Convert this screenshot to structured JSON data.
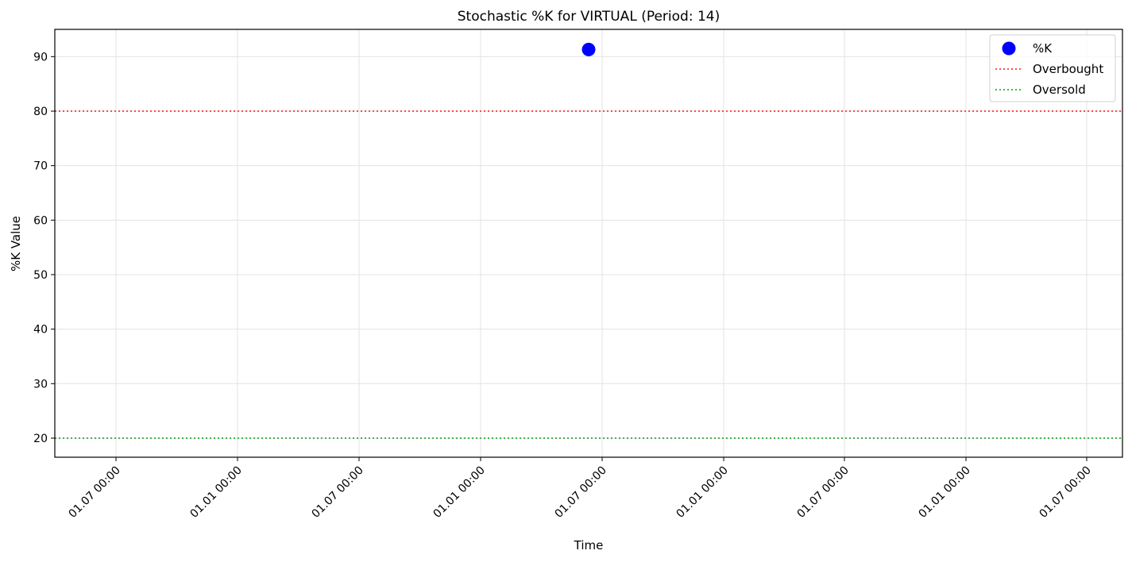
{
  "chart_data": {
    "type": "scatter",
    "title": "Stochastic %K for VIRTUAL (Period: 14)",
    "xlabel": "Time",
    "ylabel": "%K Value",
    "x_tick_labels": [
      "01.07 00:00",
      "01.01 00:00",
      "01.07 00:00",
      "01.01 00:00",
      "01.07 00:00",
      "01.01 00:00",
      "01.07 00:00",
      "01.01 00:00",
      "01.07 00:00"
    ],
    "ylim": [
      16.5,
      95
    ],
    "y_ticks": [
      20,
      30,
      40,
      50,
      60,
      70,
      80,
      90
    ],
    "grid": true,
    "legend_position": "top-right",
    "series": [
      {
        "name": "%K",
        "kind": "scatter",
        "color": "#0000ff",
        "points": [
          {
            "x": "01.07 00:00",
            "y": 91.3
          }
        ]
      }
    ],
    "reference_lines": [
      {
        "name": "Overbought",
        "y": 80,
        "color": "#ff4d4d",
        "style": "dotted"
      },
      {
        "name": "Oversold",
        "y": 20,
        "color": "#4caf50",
        "style": "dotted"
      }
    ]
  }
}
